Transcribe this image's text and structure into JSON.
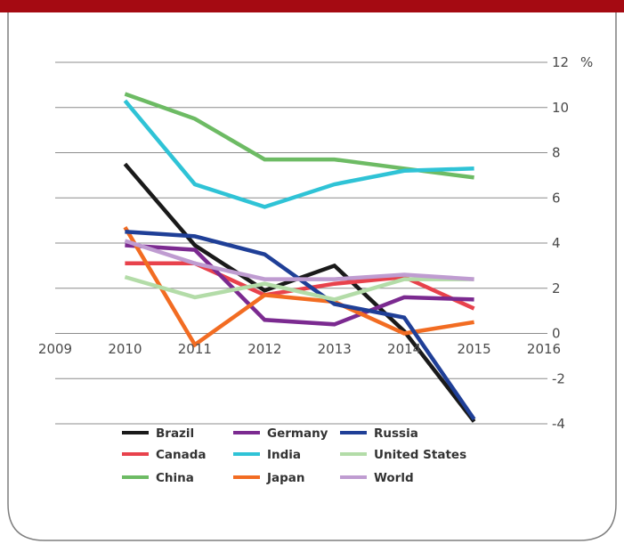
{
  "chart_data": {
    "type": "line",
    "title": "",
    "xlabel": "",
    "ylabel": "",
    "y_unit_label": "%",
    "x": [
      2010,
      2011,
      2012,
      2013,
      2014,
      2015
    ],
    "xlim": [
      2009,
      2016
    ],
    "ylim": [
      -4,
      12
    ],
    "x_ticks": [
      "2009",
      "2010",
      "2011",
      "2012",
      "2013",
      "2014",
      "2015",
      "2016"
    ],
    "y_ticks": [
      "12",
      "10",
      "8",
      "6",
      "4",
      "2",
      "0",
      "-2",
      "-4"
    ],
    "grid": "horizontal",
    "legend_position": "bottom",
    "series": [
      {
        "name": "Brazil",
        "color": "#1a1a1a",
        "values": [
          7.5,
          3.9,
          1.9,
          3.0,
          0.1,
          -3.9
        ]
      },
      {
        "name": "Canada",
        "color": "#e8424c",
        "values": [
          3.1,
          3.1,
          1.7,
          2.2,
          2.5,
          1.1
        ]
      },
      {
        "name": "China",
        "color": "#6dbb64",
        "values": [
          10.6,
          9.5,
          7.7,
          7.7,
          7.3,
          6.9
        ]
      },
      {
        "name": "Germany",
        "color": "#7b2a90",
        "values": [
          3.9,
          3.7,
          0.6,
          0.4,
          1.6,
          1.5
        ]
      },
      {
        "name": "India",
        "color": "#2fc3d6",
        "values": [
          10.3,
          6.6,
          5.6,
          6.6,
          7.2,
          7.3
        ]
      },
      {
        "name": "Japan",
        "color": "#f26c22",
        "values": [
          4.7,
          -0.5,
          1.7,
          1.4,
          0.0,
          0.5
        ]
      },
      {
        "name": "Russia",
        "color": "#1f3f97",
        "values": [
          4.5,
          4.3,
          3.5,
          1.3,
          0.7,
          -3.8
        ]
      },
      {
        "name": "United States",
        "color": "#b3dca8",
        "values": [
          2.5,
          1.6,
          2.2,
          1.5,
          2.4,
          2.4
        ]
      },
      {
        "name": "World",
        "color": "#bf9cd1",
        "values": [
          4.1,
          3.1,
          2.4,
          2.4,
          2.6,
          2.4
        ]
      }
    ]
  }
}
